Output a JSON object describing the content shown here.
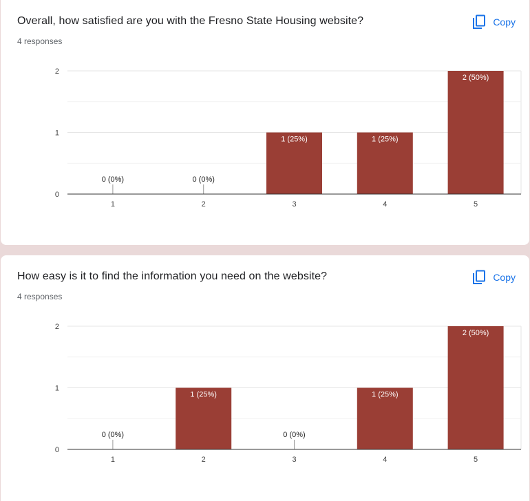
{
  "copy_label": "Copy",
  "bar_color": "#9a3e35",
  "questions": [
    {
      "title": "Overall, how satisfied are you with the Fresno State Housing website?",
      "responses": "4 responses"
    },
    {
      "title": "How easy is it to find the information you need on the website?",
      "responses": "4 responses"
    }
  ],
  "chart_data": [
    {
      "type": "bar",
      "categories": [
        "1",
        "2",
        "3",
        "4",
        "5"
      ],
      "values": [
        0,
        0,
        1,
        1,
        2
      ],
      "data_labels": [
        "0 (0%)",
        "0 (0%)",
        "1 (25%)",
        "1 (25%)",
        "2 (50%)"
      ],
      "yticks": [
        "0",
        "1",
        "2"
      ],
      "ylim": [
        0,
        2
      ],
      "grid": true
    },
    {
      "type": "bar",
      "categories": [
        "1",
        "2",
        "3",
        "4",
        "5"
      ],
      "values": [
        0,
        1,
        0,
        1,
        2
      ],
      "data_labels": [
        "0 (0%)",
        "1 (25%)",
        "0 (0%)",
        "1 (25%)",
        "2 (50%)"
      ],
      "yticks": [
        "0",
        "1",
        "2"
      ],
      "ylim": [
        0,
        2
      ],
      "grid": true
    }
  ]
}
